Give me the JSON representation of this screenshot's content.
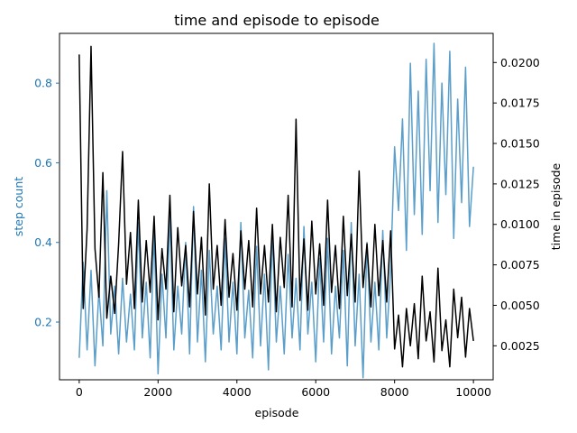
{
  "chart_data": {
    "type": "line",
    "title": "time and episode to episode",
    "xlabel": "episode",
    "ylabel_left": "step count",
    "ylabel_right": "time in episode",
    "xlim": [
      -500,
      10500
    ],
    "ylim_left": [
      0.055,
      0.925
    ],
    "ylim_right": [
      0.0004,
      0.0218
    ],
    "x_ticks": [
      0,
      2000,
      4000,
      6000,
      8000,
      10000
    ],
    "x_tick_labels": [
      "0",
      "2000",
      "4000",
      "6000",
      "8000",
      "10000"
    ],
    "y_left_ticks": [
      0.2,
      0.4,
      0.6,
      0.8
    ],
    "y_left_tick_labels": [
      "0.2",
      "0.4",
      "0.6",
      "0.8"
    ],
    "y_right_ticks": [
      0.0025,
      0.005,
      0.0075,
      0.01,
      0.0125,
      0.015,
      0.0175,
      0.02
    ],
    "y_right_tick_labels": [
      "0.0025",
      "0.0050",
      "0.0075",
      "0.0100",
      "0.0125",
      "0.0150",
      "0.0175",
      "0.0200"
    ],
    "grid": false,
    "left_axis_color": "#1f77b4",
    "series": [
      {
        "axis": "left",
        "color": "#5a9ec9",
        "x": [
          0,
          100,
          200,
          300,
          400,
          500,
          600,
          700,
          800,
          900,
          1000,
          1100,
          1200,
          1300,
          1400,
          1500,
          1600,
          1700,
          1800,
          1900,
          2000,
          2100,
          2200,
          2300,
          2400,
          2500,
          2600,
          2700,
          2800,
          2900,
          3000,
          3100,
          3200,
          3300,
          3400,
          3500,
          3600,
          3700,
          3800,
          3900,
          4000,
          4100,
          4200,
          4300,
          4400,
          4500,
          4600,
          4700,
          4800,
          4900,
          5000,
          5100,
          5200,
          5300,
          5400,
          5500,
          5600,
          5700,
          5800,
          5900,
          6000,
          6100,
          6200,
          6300,
          6400,
          6500,
          6600,
          6700,
          6800,
          6900,
          7000,
          7100,
          7200,
          7300,
          7400,
          7500,
          7600,
          7700,
          7800,
          7900,
          8000,
          8100,
          8200,
          8300,
          8400,
          8500,
          8600,
          8700,
          8800,
          8900,
          9000,
          9100,
          9200,
          9300,
          9400,
          9500,
          9600,
          9700,
          9800,
          9900,
          10000
        ],
        "values": [
          0.11,
          0.35,
          0.13,
          0.33,
          0.09,
          0.28,
          0.14,
          0.53,
          0.17,
          0.29,
          0.12,
          0.31,
          0.15,
          0.27,
          0.13,
          0.45,
          0.16,
          0.3,
          0.11,
          0.43,
          0.07,
          0.32,
          0.16,
          0.47,
          0.13,
          0.29,
          0.17,
          0.4,
          0.12,
          0.49,
          0.15,
          0.33,
          0.1,
          0.38,
          0.17,
          0.29,
          0.13,
          0.41,
          0.15,
          0.3,
          0.12,
          0.45,
          0.16,
          0.28,
          0.11,
          0.39,
          0.14,
          0.32,
          0.08,
          0.42,
          0.15,
          0.29,
          0.12,
          0.37,
          0.16,
          0.31,
          0.13,
          0.44,
          0.17,
          0.3,
          0.1,
          0.36,
          0.15,
          0.41,
          0.12,
          0.29,
          0.16,
          0.38,
          0.09,
          0.45,
          0.14,
          0.32,
          0.06,
          0.4,
          0.15,
          0.3,
          0.13,
          0.43,
          0.16,
          0.33,
          0.64,
          0.48,
          0.71,
          0.38,
          0.85,
          0.47,
          0.78,
          0.42,
          0.86,
          0.53,
          0.9,
          0.45,
          0.8,
          0.52,
          0.88,
          0.41,
          0.76,
          0.5,
          0.84,
          0.44,
          0.59
        ]
      },
      {
        "axis": "right",
        "color": "#000000",
        "x": [
          0,
          100,
          200,
          300,
          400,
          500,
          600,
          700,
          800,
          900,
          1000,
          1100,
          1200,
          1300,
          1400,
          1500,
          1600,
          1700,
          1800,
          1900,
          2000,
          2100,
          2200,
          2300,
          2400,
          2500,
          2600,
          2700,
          2800,
          2900,
          3000,
          3100,
          3200,
          3300,
          3400,
          3500,
          3600,
          3700,
          3800,
          3900,
          4000,
          4100,
          4200,
          4300,
          4400,
          4500,
          4600,
          4700,
          4800,
          4900,
          5000,
          5100,
          5200,
          5300,
          5400,
          5500,
          5600,
          5700,
          5800,
          5900,
          6000,
          6100,
          6200,
          6300,
          6400,
          6500,
          6600,
          6700,
          6800,
          6900,
          7000,
          7100,
          7200,
          7300,
          7400,
          7500,
          7600,
          7700,
          7800,
          7900,
          8000,
          8100,
          8200,
          8300,
          8400,
          8500,
          8600,
          8700,
          8800,
          8900,
          9000,
          9100,
          9200,
          9300,
          9400,
          9500,
          9600,
          9700,
          9800,
          9900,
          10000
        ],
        "values": [
          0.0205,
          0.0048,
          0.0097,
          0.021,
          0.0085,
          0.0055,
          0.0132,
          0.0042,
          0.0068,
          0.0045,
          0.0088,
          0.0145,
          0.0063,
          0.0095,
          0.0048,
          0.0115,
          0.0052,
          0.009,
          0.0058,
          0.0105,
          0.0041,
          0.0085,
          0.006,
          0.0118,
          0.0046,
          0.0098,
          0.0062,
          0.0087,
          0.0049,
          0.0108,
          0.0057,
          0.0092,
          0.0044,
          0.0125,
          0.006,
          0.0087,
          0.005,
          0.0103,
          0.0055,
          0.0082,
          0.0047,
          0.0096,
          0.006,
          0.009,
          0.0049,
          0.011,
          0.0057,
          0.0087,
          0.0052,
          0.01,
          0.0046,
          0.0092,
          0.0061,
          0.0118,
          0.0049,
          0.0165,
          0.0053,
          0.0091,
          0.0047,
          0.0102,
          0.0057,
          0.0088,
          0.005,
          0.0115,
          0.0058,
          0.0087,
          0.0048,
          0.0105,
          0.0056,
          0.0094,
          0.0052,
          0.0133,
          0.0061,
          0.0088,
          0.0049,
          0.01,
          0.0056,
          0.009,
          0.0052,
          0.0096,
          0.0023,
          0.0044,
          0.0012,
          0.0048,
          0.0025,
          0.0051,
          0.0017,
          0.0068,
          0.0028,
          0.0046,
          0.0015,
          0.0073,
          0.0022,
          0.0041,
          0.0012,
          0.006,
          0.003,
          0.0055,
          0.0018,
          0.0048,
          0.0028
        ]
      }
    ]
  }
}
